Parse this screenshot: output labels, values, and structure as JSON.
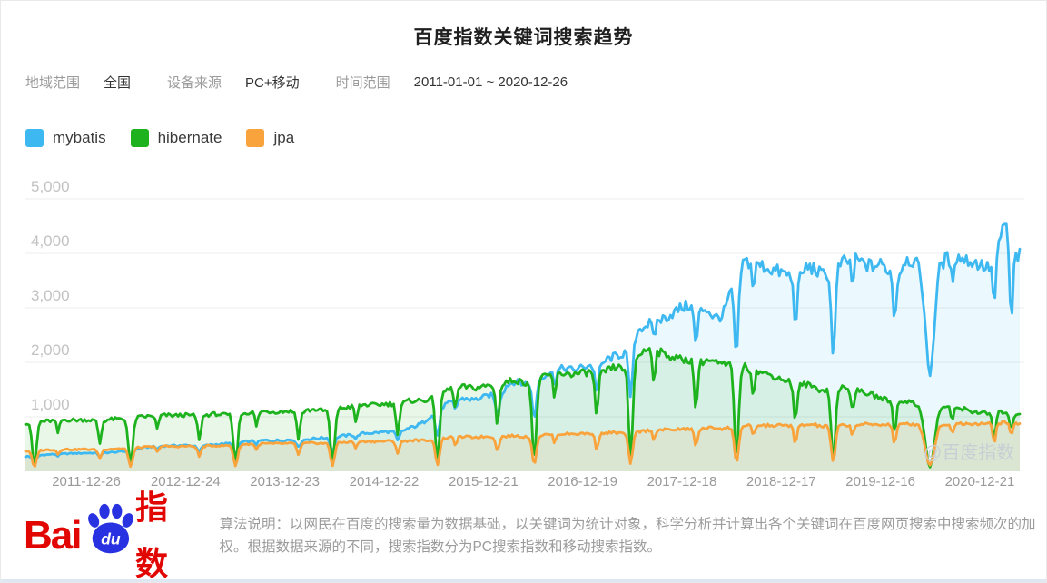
{
  "header": {
    "title": "百度指数关键词搜索趋势",
    "filters": [
      {
        "label": "地域范围",
        "value": "全国"
      },
      {
        "label": "设备来源",
        "value": "PC+移动"
      },
      {
        "label": "时间范围",
        "value": "2011-01-01 ~ 2020-12-26"
      }
    ]
  },
  "chart_data": {
    "type": "line",
    "title": "百度指数关键词搜索趋势",
    "x_unit": "week",
    "x_range": [
      "2011-01-01",
      "2020-12-26"
    ],
    "weeks_total": 522,
    "x_ticks": [
      "2011-12-26",
      "2012-12-24",
      "2013-12-23",
      "2014-12-22",
      "2015-12-21",
      "2016-12-19",
      "2017-12-18",
      "2018-12-17",
      "2019-12-16",
      "2020-12-21"
    ],
    "ylim": [
      0,
      5000
    ],
    "y_ticks": [
      1000,
      2000,
      3000,
      4000,
      5000
    ],
    "y_tick_labels": [
      "1,000",
      "2,000",
      "3,000",
      "4,000",
      "5,000"
    ],
    "grid": true,
    "legend_position": "top-left",
    "watermark": "@百度指数",
    "series": [
      {
        "name": "mybatis",
        "color": "#3EB8F0",
        "fill_opacity": 0.1,
        "dip_scale": 0.42,
        "monthly_2011_2020": [
          270,
          285,
          300,
          310,
          318,
          325,
          330,
          335,
          338,
          335,
          345,
          355,
          370,
          395,
          430,
          450,
          460,
          468,
          470,
          478,
          472,
          455,
          480,
          495,
          505,
          520,
          535,
          550,
          562,
          570,
          565,
          572,
          580,
          555,
          590,
          605,
          615,
          630,
          648,
          662,
          680,
          700,
          705,
          722,
          730,
          705,
          780,
          830,
          900,
          1050,
          1180,
          1250,
          1300,
          1340,
          1310,
          1350,
          1400,
          1310,
          1580,
          1650,
          1600,
          1660,
          1720,
          1800,
          1850,
          1900,
          1860,
          1905,
          1950,
          1860,
          2050,
          2110,
          2150,
          2400,
          2620,
          2700,
          2760,
          2810,
          2900,
          3000,
          3050,
          2900,
          3000,
          2820,
          2850,
          3300,
          3800,
          3850,
          3800,
          3760,
          3700,
          3650,
          3600,
          3420,
          3750,
          3720,
          3600,
          3700,
          3800,
          3850,
          3900,
          3810,
          3760,
          3800,
          3700,
          3520,
          3900,
          3860,
          3700,
          3200,
          3800,
          3900,
          3950,
          3900,
          3850,
          3800,
          3720,
          3950,
          4600,
          3950
        ]
      },
      {
        "name": "hibernate",
        "color": "#1EB31E",
        "fill_opacity": 0.1,
        "dip_scale": 0.88,
        "monthly_2011_2020": [
          890,
          905,
          915,
          925,
          935,
          945,
          938,
          945,
          940,
          910,
          950,
          960,
          955,
          975,
          1000,
          1010,
          1020,
          1030,
          1022,
          1032,
          1028,
          1000,
          1040,
          1052,
          1030,
          1045,
          1060,
          1080,
          1090,
          1100,
          1092,
          1100,
          1105,
          1065,
          1120,
          1135,
          1110,
          1130,
          1155,
          1180,
          1200,
          1225,
          1212,
          1232,
          1240,
          1205,
          1285,
          1305,
          1290,
          1370,
          1450,
          1500,
          1525,
          1550,
          1522,
          1552,
          1580,
          1505,
          1640,
          1680,
          1620,
          1660,
          1705,
          1752,
          1780,
          1800,
          1782,
          1802,
          1820,
          1755,
          1850,
          1905,
          1900,
          2020,
          2150,
          2250,
          2205,
          2155,
          2100,
          2050,
          2050,
          1955,
          2050,
          2005,
          1950,
          1950,
          1950,
          1900,
          1850,
          1800,
          1755,
          1700,
          1650,
          1560,
          1600,
          1550,
          1480,
          1520,
          1550,
          1500,
          1480,
          1450,
          1400,
          1350,
          1300,
          1255,
          1300,
          1250,
          1180,
          1000,
          1150,
          1200,
          1180,
          1150,
          1100,
          1080,
          1050,
          1060,
          1100,
          1060
        ]
      },
      {
        "name": "jpa",
        "color": "#F9A33C",
        "fill_opacity": 0.12,
        "dip_scale": 0.8,
        "monthly_2011_2020": [
          375,
          382,
          390,
          396,
          400,
          405,
          400,
          406,
          402,
          390,
          410,
          416,
          420,
          430,
          440,
          450,
          456,
          460,
          455,
          461,
          459,
          446,
          466,
          471,
          472,
          480,
          490,
          500,
          506,
          510,
          506,
          511,
          510,
          496,
          516,
          521,
          512,
          520,
          530,
          540,
          546,
          551,
          548,
          553,
          556,
          541,
          561,
          571,
          565,
          582,
          600,
          620,
          626,
          631,
          626,
          633,
          639,
          621,
          646,
          651,
          635,
          648,
          661,
          676,
          681,
          690,
          686,
          691,
          696,
          681,
          701,
          711,
          695,
          712,
          731,
          751,
          756,
          761,
          766,
          771,
          776,
          761,
          791,
          801,
          785,
          802,
          821,
          831,
          836,
          841,
          839,
          843,
          846,
          831,
          851,
          856,
          822,
          831,
          841,
          851,
          856,
          861,
          856,
          861,
          856,
          841,
          866,
          871,
          832,
          700,
          851,
          871,
          876,
          881,
          876,
          881,
          871,
          881,
          901,
          881
        ]
      }
    ],
    "holiday_dips": [
      {
        "name": "spring-festival",
        "weeks": [
          4.7,
          55.1,
          110.1,
          160.9,
          215.9,
          266.6,
          317.1,
          372.6,
          423.3
        ],
        "severity": 1.0,
        "width": 1.1
      },
      {
        "name": "spring-festival-2020",
        "weeks": [
          473.9
        ],
        "severity": 1.05,
        "width": 2.2
      },
      {
        "name": "national-day",
        "weeks": [
          39,
          91.1,
          143.1,
          195.1,
          247.3,
          299.3,
          351.3,
          403.4,
          455.4,
          507.6
        ],
        "severity": 0.5,
        "width": 0.8
      },
      {
        "name": "may-day",
        "weeks": [
          17.1,
          69.1,
          121.1,
          173.2,
          225.3,
          277.3,
          329.3,
          381.4,
          433.4,
          485.6
        ],
        "severity": 0.28,
        "width": 0.7
      },
      {
        "name": "late-2020-dip",
        "weeks": [
          516.5
        ],
        "severity": {
          "mybatis": 0.8,
          "hibernate": 0.35,
          "jpa": 0.3
        },
        "width": 0.8
      }
    ]
  },
  "footer": {
    "logo": {
      "bai": "Bai",
      "du": "du",
      "suffix": "指数"
    },
    "algorithm_note": "算法说明：以网民在百度的搜索量为数据基础，以关键词为统计对象，科学分析并计算出各个关键词在百度网页搜索中搜索频次的加权。根据数据来源的不同，搜索指数分为PC搜索指数和移动搜索指数。"
  }
}
